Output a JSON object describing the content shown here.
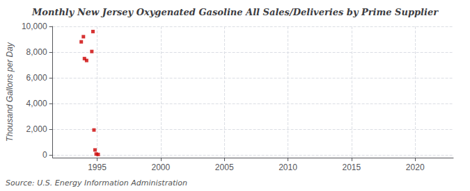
{
  "chart_data": {
    "type": "scatter",
    "title": "Monthly New Jersey Oxygenated Gasoline All Sales/Deliveries by Prime Supplier",
    "ylabel": "Thousand Gallons per Day",
    "annotation": "Source: U.S. Energy Information Administration",
    "x": [
      1993.75,
      1993.92,
      1994.67,
      1994.0,
      1994.17,
      1994.58,
      1994.75,
      1994.83,
      1994.92,
      1995.08
    ],
    "values": [
      8800,
      9200,
      9600,
      7500,
      7350,
      8050,
      1950,
      400,
      80,
      50
    ],
    "color": "#cc0000",
    "marker": "square",
    "xlim": [
      1991.5,
      2023
    ],
    "xticks": [
      1995,
      2000,
      2005,
      2010,
      2015,
      2020
    ],
    "ylim": [
      -200,
      10000
    ],
    "yticks": [
      0,
      {
        "value": 2000,
        "label": "2,000"
      },
      {
        "value": 4000,
        "label": "4,000"
      },
      {
        "value": 6000,
        "label": "6,000"
      },
      {
        "value": 8000,
        "label": "8,000"
      },
      {
        "value": 10000,
        "label": "10,000"
      }
    ],
    "grid": true
  }
}
